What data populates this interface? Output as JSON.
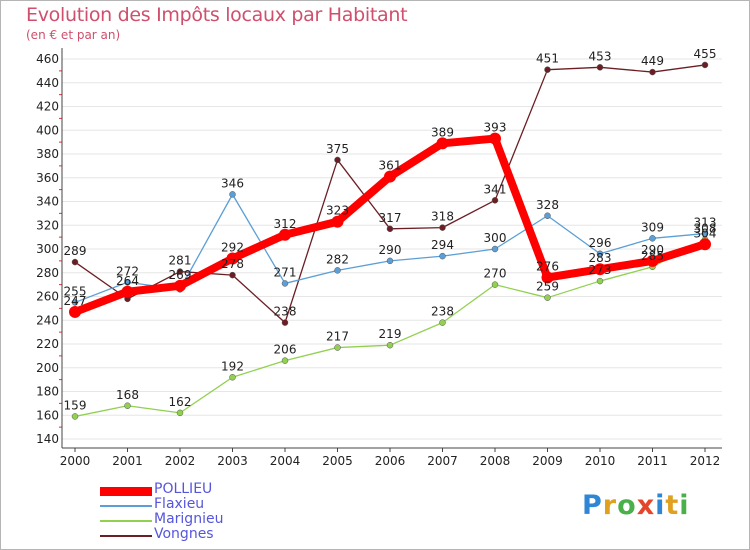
{
  "page": {
    "title": "Evolution des Impôts locaux par Habitant",
    "subtitle": "(en € et par an)",
    "brand": {
      "letters": [
        {
          "ch": "P",
          "color": "#2e86d4"
        },
        {
          "ch": "r",
          "color": "#e0a020"
        },
        {
          "ch": "o",
          "color": "#49b04a"
        },
        {
          "ch": "x",
          "color": "#e4462b"
        },
        {
          "ch": "i",
          "color": "#2e86d4"
        },
        {
          "ch": "t",
          "color": "#e0a020"
        },
        {
          "ch": "i",
          "color": "#49b04a"
        }
      ]
    }
  },
  "chart_data": {
    "type": "line",
    "title": "Evolution des Impôts locaux par Habitant",
    "subtitle": "(en € et par an)",
    "xlabel": "",
    "ylabel": "",
    "categories": [
      "2000",
      "2001",
      "2002",
      "2003",
      "2004",
      "2005",
      "2006",
      "2007",
      "2008",
      "2009",
      "2010",
      "2011",
      "2012"
    ],
    "yticks": [
      140,
      160,
      180,
      200,
      220,
      240,
      260,
      280,
      300,
      320,
      340,
      360,
      380,
      400,
      420,
      440,
      460
    ],
    "ylim": [
      140,
      465
    ],
    "grid": "horizontal",
    "legend_position": "bottom-left",
    "series": [
      {
        "name": "POLLIEU",
        "color": "#ff0000",
        "values": [
          247,
          264,
          269,
          292,
          312,
          323,
          361,
          389,
          393,
          276,
          283,
          290,
          304
        ],
        "labels": [
          "247",
          "264",
          "269",
          "292",
          "312",
          "323",
          "361",
          "389",
          "393",
          "276",
          "283",
          "290",
          "304"
        ]
      },
      {
        "name": "Flaxieu",
        "color": "#5b9fd6",
        "values": [
          255,
          272,
          266,
          346,
          271,
          282,
          290,
          294,
          300,
          328,
          296,
          309,
          313
        ],
        "labels": [
          "255",
          "272",
          "",
          "346",
          "271",
          "282",
          "290",
          "294",
          "300",
          "328",
          "296",
          "309",
          "313"
        ]
      },
      {
        "name": "Marignieu",
        "color": "#92d050",
        "values": [
          159,
          168,
          162,
          192,
          206,
          217,
          219,
          238,
          270,
          259,
          273,
          285,
          308
        ],
        "labels": [
          "159",
          "168",
          "162",
          "192",
          "206",
          "217",
          "219",
          "238",
          "270",
          "259",
          "273",
          "285",
          "308"
        ]
      },
      {
        "name": "Vongnes",
        "color": "#6b1f24",
        "values": [
          289,
          258,
          281,
          278,
          238,
          375,
          317,
          318,
          341,
          451,
          453,
          449,
          455
        ],
        "labels": [
          "289",
          "",
          "281",
          "278",
          "238",
          "375",
          "317",
          "318",
          "341",
          "451",
          "453",
          "449",
          "455"
        ]
      }
    ]
  }
}
